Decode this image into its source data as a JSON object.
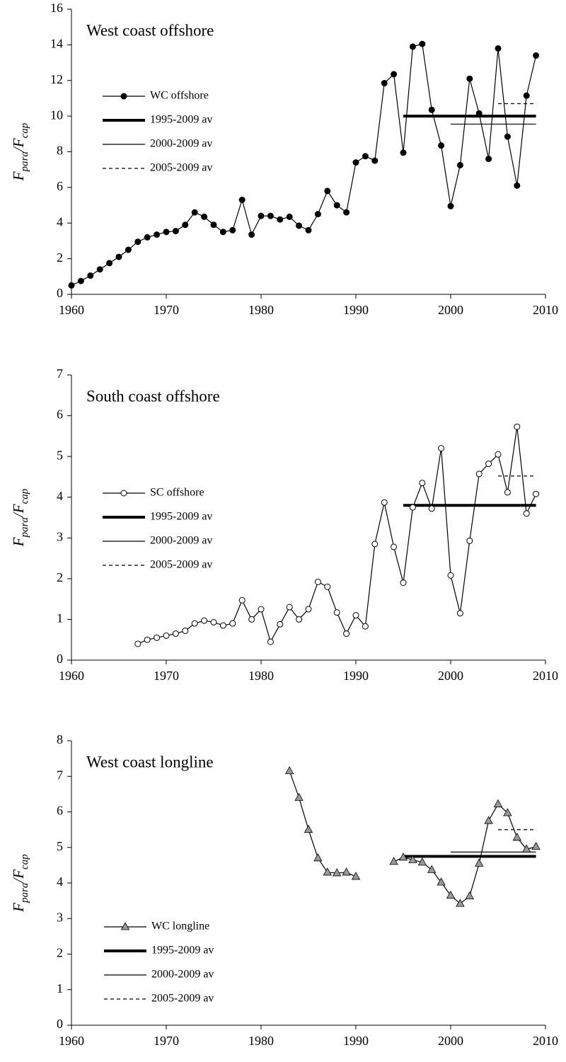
{
  "chart_data": [
    {
      "type": "line",
      "title": "West coast offshore",
      "y_label": [
        "F",
        "para",
        "/F",
        "cap"
      ],
      "xlim": [
        1960,
        2010
      ],
      "xticks": [
        1960,
        1970,
        1980,
        1990,
        2000,
        2010
      ],
      "ylim": [
        0,
        16
      ],
      "yticks": [
        0,
        2,
        4,
        6,
        8,
        10,
        12,
        14,
        16
      ],
      "x": [
        1960,
        1961,
        1962,
        1963,
        1964,
        1965,
        1966,
        1967,
        1968,
        1969,
        1970,
        1971,
        1972,
        1973,
        1974,
        1975,
        1976,
        1977,
        1978,
        1979,
        1980,
        1981,
        1982,
        1983,
        1984,
        1985,
        1986,
        1987,
        1988,
        1989,
        1990,
        1991,
        1992,
        1993,
        1994,
        1995,
        1996,
        1997,
        1998,
        1999,
        2000,
        2001,
        2002,
        2003,
        2004,
        2005,
        2006,
        2007,
        2008,
        2009
      ],
      "series": [
        {
          "name": "WC offshore",
          "color": "#000000",
          "marker": "circle",
          "marker_color": "#000000",
          "values": [
            0.5,
            0.75,
            1.05,
            1.4,
            1.75,
            2.1,
            2.5,
            2.95,
            3.2,
            3.35,
            3.5,
            3.55,
            3.9,
            4.6,
            4.35,
            3.9,
            3.5,
            3.6,
            5.3,
            3.35,
            4.4,
            4.4,
            4.2,
            4.35,
            3.85,
            3.6,
            4.5,
            5.8,
            5.0,
            4.6,
            7.4,
            7.75,
            7.5,
            11.85,
            12.35,
            7.95,
            13.9,
            14.05,
            10.35,
            8.35,
            4.95,
            7.25,
            12.1,
            10.15,
            7.6,
            13.8,
            8.85,
            6.1,
            11.15,
            13.4
          ]
        }
      ],
      "reference_lines": [
        {
          "name": "1995-2009 av",
          "value": 10.0,
          "x_start": 1995,
          "x_end": 2009,
          "style": "thick"
        },
        {
          "name": "2000-2009 av",
          "value": 9.55,
          "x_start": 2000,
          "x_end": 2009,
          "style": "thin"
        },
        {
          "name": "2005-2009 av",
          "value": 10.7,
          "x_start": 2005,
          "x_end": 2009,
          "style": "dashed"
        }
      ]
    },
    {
      "type": "line",
      "title": "South coast offshore",
      "y_label": [
        "F",
        "para",
        "/F",
        "cap"
      ],
      "xlim": [
        1960,
        2010
      ],
      "xticks": [
        1960,
        1970,
        1980,
        1990,
        2000,
        2010
      ],
      "ylim": [
        0,
        7
      ],
      "yticks": [
        0,
        1,
        2,
        3,
        4,
        5,
        6,
        7
      ],
      "x": [
        1967,
        1968,
        1969,
        1970,
        1971,
        1972,
        1973,
        1974,
        1975,
        1976,
        1977,
        1978,
        1979,
        1980,
        1981,
        1982,
        1983,
        1984,
        1985,
        1986,
        1987,
        1988,
        1989,
        1990,
        1991,
        1992,
        1993,
        1994,
        1995,
        1996,
        1997,
        1998,
        1999,
        2000,
        2001,
        2002,
        2003,
        2004,
        2005,
        2006,
        2007,
        2008,
        2009
      ],
      "series": [
        {
          "name": "SC offshore",
          "color": "#000000",
          "marker": "circle",
          "marker_color": "#ffffff",
          "values": [
            0.4,
            0.5,
            0.55,
            0.6,
            0.65,
            0.72,
            0.9,
            0.97,
            0.93,
            0.85,
            0.9,
            1.47,
            1.0,
            1.25,
            0.45,
            0.88,
            1.3,
            1.0,
            1.25,
            1.92,
            1.8,
            1.17,
            0.65,
            1.1,
            0.83,
            2.85,
            3.87,
            2.78,
            1.9,
            3.75,
            4.35,
            3.72,
            5.2,
            2.08,
            1.15,
            2.93,
            4.57,
            4.82,
            5.05,
            4.12,
            5.73,
            3.6,
            4.08
          ]
        }
      ],
      "reference_lines": [
        {
          "name": "1995-2009 av",
          "value": 3.8,
          "x_start": 1995,
          "x_end": 2009,
          "style": "thick"
        },
        {
          "name": "2000-2009 av",
          "value": 3.8,
          "x_start": 2000,
          "x_end": 2009,
          "style": "thin"
        },
        {
          "name": "2005-2009 av",
          "value": 4.52,
          "x_start": 2005,
          "x_end": 2009,
          "style": "dashed"
        }
      ]
    },
    {
      "type": "line",
      "title": "West coast longline",
      "y_label": [
        "F",
        "para",
        "/F",
        "cap"
      ],
      "xlim": [
        1960,
        2010
      ],
      "xticks": [
        1960,
        1970,
        1980,
        1990,
        2000,
        2010
      ],
      "ylim": [
        0,
        8
      ],
      "yticks": [
        0,
        1,
        2,
        3,
        4,
        5,
        6,
        7,
        8
      ],
      "x": [
        1983,
        1984,
        1985,
        1986,
        1987,
        1988,
        1989,
        1990,
        1991,
        1992,
        1993,
        1994,
        1995,
        1996,
        1997,
        1998,
        1999,
        2000,
        2001,
        2002,
        2003,
        2004,
        2005,
        2006,
        2007,
        2008,
        2009
      ],
      "series": [
        {
          "name": "WC longline",
          "color": "#000000",
          "marker": "triangle",
          "marker_color": "#999999",
          "values": [
            7.15,
            6.4,
            5.5,
            4.7,
            4.3,
            4.28,
            4.3,
            4.18,
            null,
            null,
            null,
            4.6,
            4.72,
            4.65,
            4.58,
            4.37,
            4.02,
            3.65,
            3.42,
            3.63,
            4.55,
            5.75,
            6.22,
            5.97,
            5.28,
            4.95,
            5.02
          ]
        }
      ],
      "reference_lines": [
        {
          "name": "1995-2009 av",
          "value": 4.75,
          "x_start": 1995,
          "x_end": 2009,
          "style": "thick"
        },
        {
          "name": "2000-2009 av",
          "value": 4.87,
          "x_start": 2000,
          "x_end": 2009,
          "style": "thin"
        },
        {
          "name": "2005-2009 av",
          "value": 5.5,
          "x_start": 2005,
          "x_end": 2009,
          "style": "dashed"
        }
      ]
    }
  ]
}
